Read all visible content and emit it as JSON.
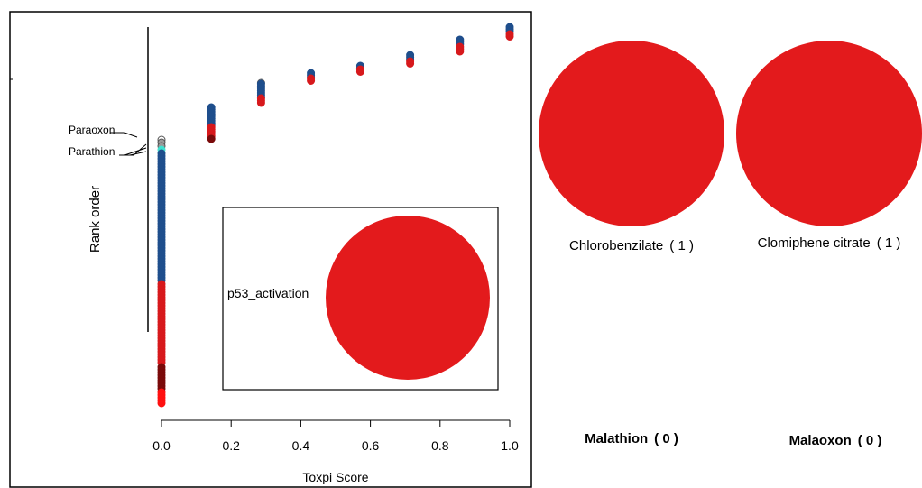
{
  "chart_data": {
    "type": "scatter",
    "xlabel": "Toxpi Score",
    "ylabel": "Rank order",
    "xlim": [
      0,
      1
    ],
    "x_ticks": [
      "0.0",
      "0.2",
      "0.4",
      "0.6",
      "0.8",
      "1.0"
    ],
    "grid": false,
    "score_levels": [
      0,
      0.143,
      0.286,
      0.429,
      0.571,
      0.714,
      0.857,
      1.0
    ],
    "labeled_points": [
      {
        "label": "Paraoxon",
        "x": 0
      },
      {
        "label": "Parathion",
        "x": 0
      }
    ],
    "inset": {
      "label": "p53_activation",
      "slices": [
        {
          "name": "p53_activation",
          "value": 1,
          "color": "#e31a1c"
        }
      ]
    },
    "chemicals": [
      {
        "name": "Chlorobenzilate",
        "score": "( 1 )",
        "value": 1,
        "color": "#e31a1c"
      },
      {
        "name": "Clomiphene citrate",
        "score": "( 1 )",
        "value": 1,
        "color": "#e31a1c"
      },
      {
        "name": "Malathion",
        "score": "( 0 )",
        "value": 0,
        "color": "#e31a1c"
      },
      {
        "name": "Malaoxon",
        "score": "( 0 )",
        "value": 0,
        "color": "#e31a1c"
      }
    ],
    "colors": {
      "blue": "#1f4e8c",
      "red": "#d7191c",
      "dark_red": "#7a0a0a",
      "gray": "#9a9a9a",
      "cyan": "#40e0d0",
      "pie_red": "#e31a1c"
    }
  }
}
